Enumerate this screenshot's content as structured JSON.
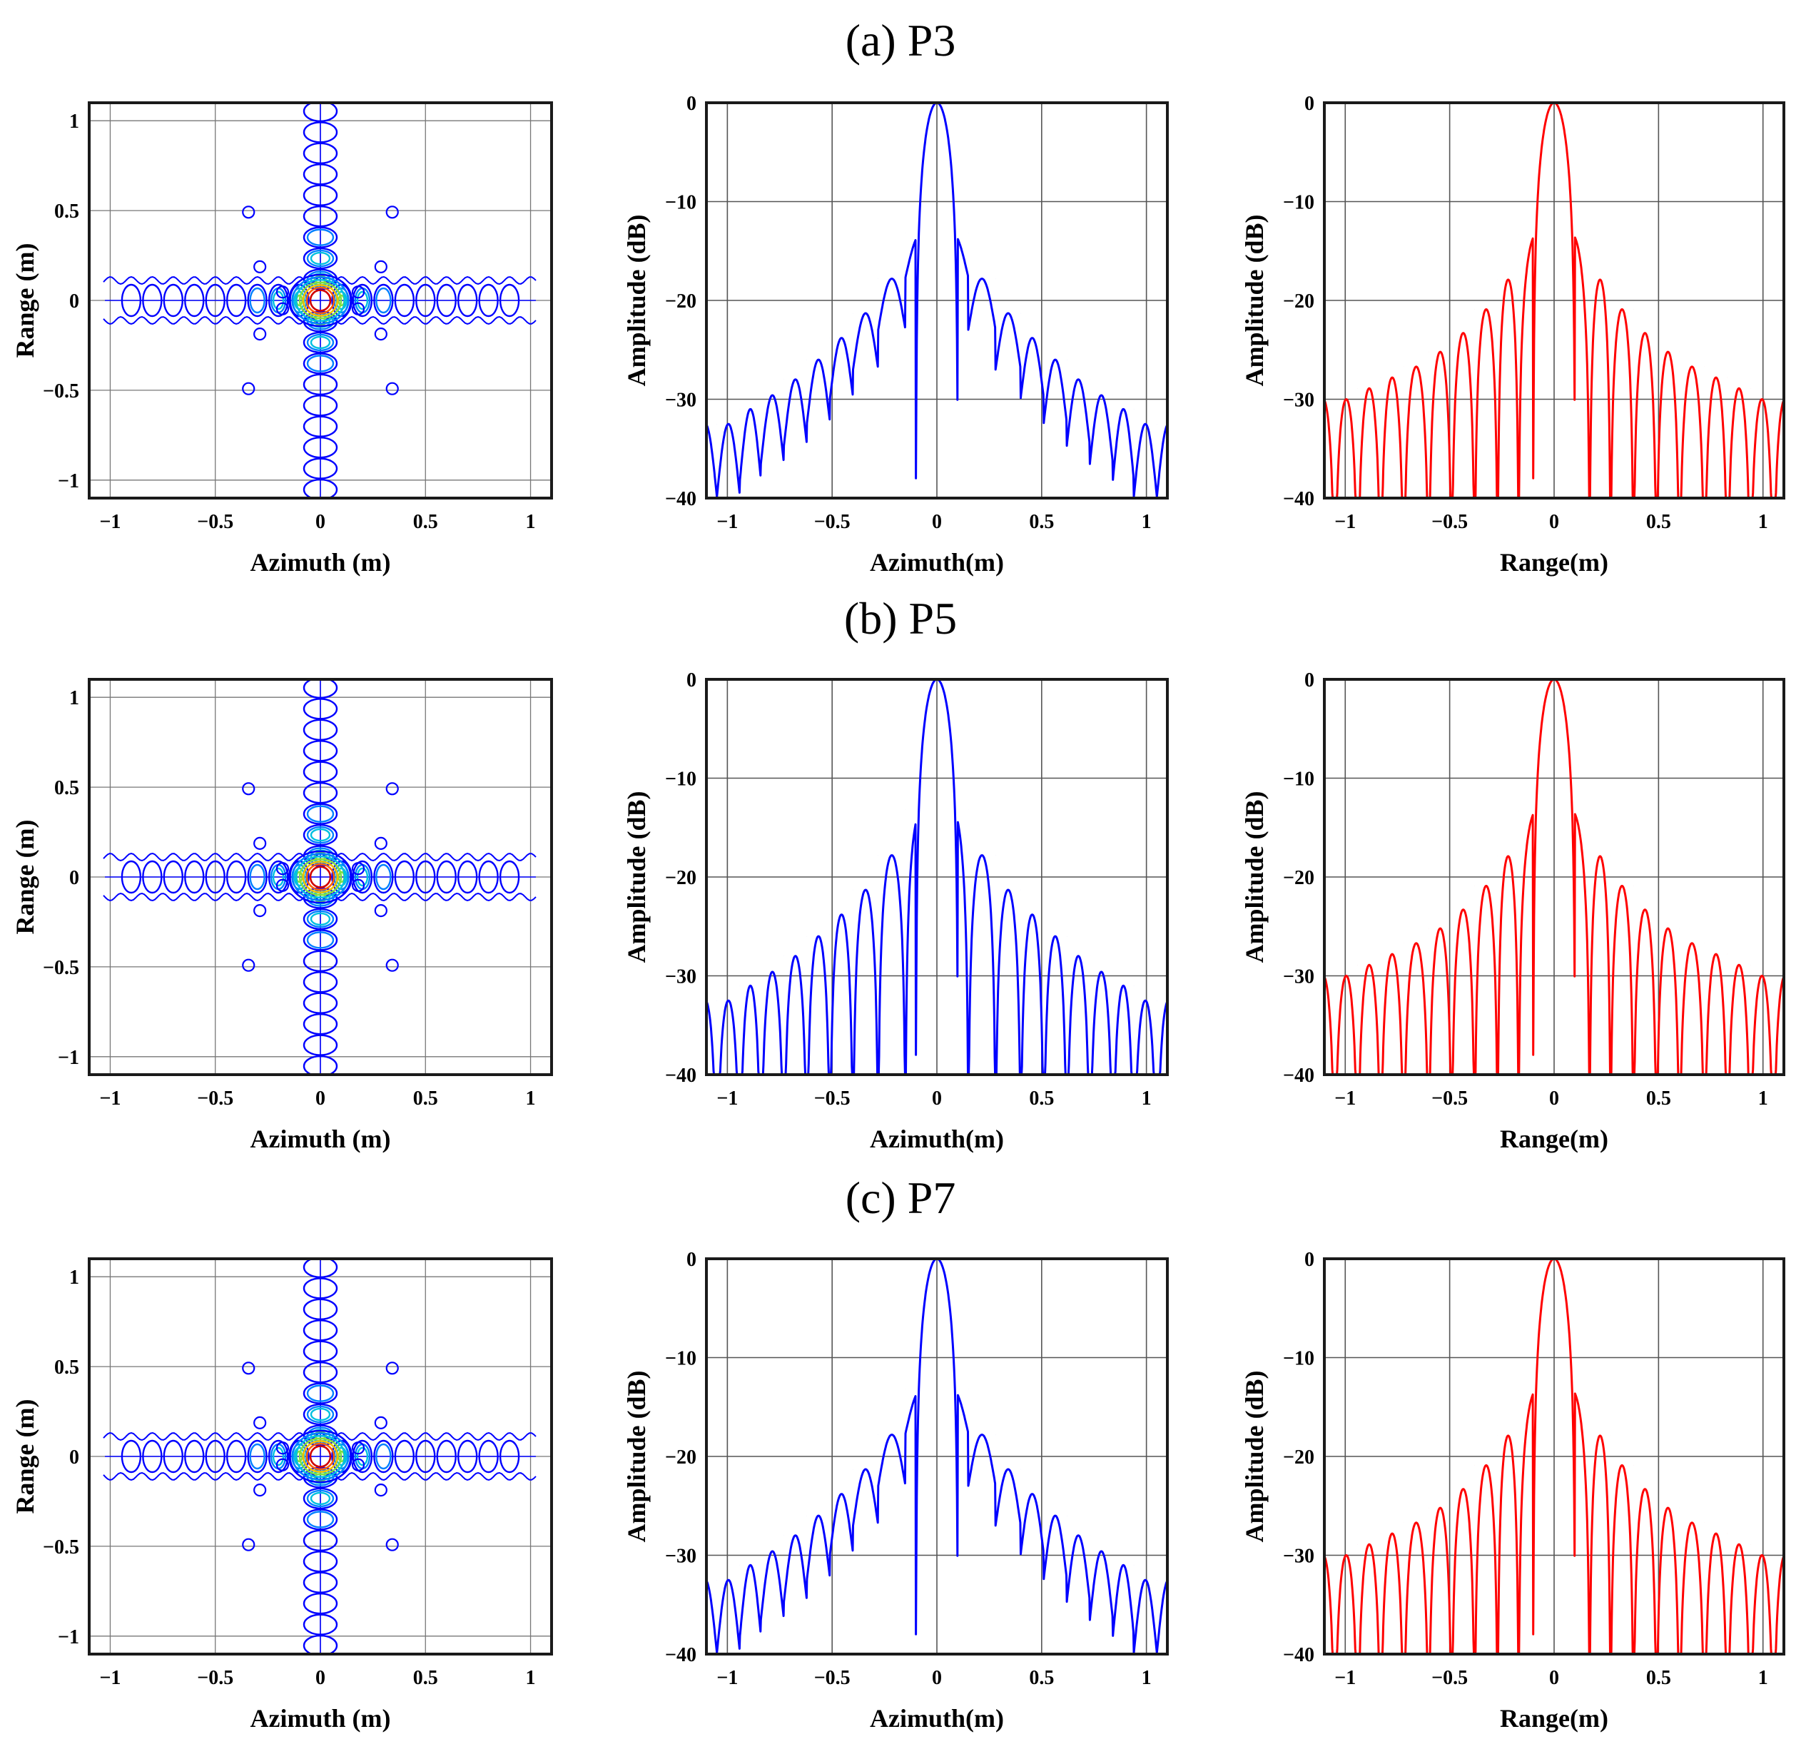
{
  "figure": {
    "rows": [
      {
        "title": "(a) P3",
        "azimuth_style": "smooth"
      },
      {
        "title": "(b) P5",
        "azimuth_style": "nulls"
      },
      {
        "title": "(c) P7",
        "azimuth_style": "smooth"
      }
    ]
  },
  "chart_data": [
    {
      "type": "contour",
      "panel": "2D point target response",
      "xlabel": "Azimuth (m)",
      "ylabel": "Range (m)",
      "xlim": [
        -1.1,
        1.1
      ],
      "ylim": [
        -1.1,
        1.1
      ],
      "xticks": [
        -1,
        -0.5,
        0,
        0.5,
        1
      ],
      "xtick_labels": [
        "−1",
        "−0.5",
        "0",
        "0.5",
        "1"
      ],
      "yticks": [
        -1,
        -0.5,
        0,
        0.5,
        1
      ],
      "ytick_labels": [
        "−1",
        "−0.5",
        "0",
        "0.5",
        "1"
      ],
      "grid": true,
      "levels": [
        "#0000ff",
        "#0080ff",
        "#00c0e0",
        "#80e040",
        "#f0c000",
        "#ff6000",
        "#d00000"
      ],
      "sidelobe_spacing_m": 0.1
    },
    {
      "type": "line",
      "panel": "azimuth profile",
      "xlabel": "Azimuth(m)",
      "ylabel": "Amplitude (dB)",
      "xlim": [
        -1.1,
        1.1
      ],
      "ylim": [
        -40,
        0
      ],
      "xticks": [
        -1,
        -0.5,
        0,
        0.5,
        1
      ],
      "xtick_labels": [
        "−1",
        "−0.5",
        "0",
        "0.5",
        "1"
      ],
      "yticks": [
        0,
        -10,
        -20,
        -30,
        -40
      ],
      "ytick_labels": [
        "0",
        "−10",
        "−20",
        "−30",
        "−40"
      ],
      "grid": true,
      "color": "#0000ff",
      "peaks": [
        {
          "x": 0.0,
          "y": 0
        },
        {
          "x": 0.15,
          "y": -13.2
        },
        {
          "x": 0.28,
          "y": -17.8
        },
        {
          "x": 0.4,
          "y": -21.3
        },
        {
          "x": 0.51,
          "y": -23.8
        },
        {
          "x": 0.62,
          "y": -26.0
        },
        {
          "x": 0.73,
          "y": -28.0
        },
        {
          "x": 0.84,
          "y": -29.6
        },
        {
          "x": 0.94,
          "y": -31.0
        },
        {
          "x": 1.05,
          "y": -32.5
        }
      ]
    },
    {
      "type": "line",
      "panel": "range profile",
      "xlabel": "Range(m)",
      "ylabel": "Amplitude (dB)",
      "xlim": [
        -1.1,
        1.1
      ],
      "ylim": [
        -40,
        0
      ],
      "xticks": [
        -1,
        -0.5,
        0,
        0.5,
        1
      ],
      "xtick_labels": [
        "−1",
        "−0.5",
        "0",
        "0.5",
        "1"
      ],
      "yticks": [
        0,
        -10,
        -20,
        -30,
        -40
      ],
      "ytick_labels": [
        "0",
        "−10",
        "−20",
        "−30",
        "−40"
      ],
      "grid": true,
      "color": "#ff0000",
      "peaks": [
        {
          "x": 0.0,
          "y": 0
        },
        {
          "x": 0.17,
          "y": -13.3
        },
        {
          "x": 0.27,
          "y": -17.9
        },
        {
          "x": 0.38,
          "y": -20.9
        },
        {
          "x": 0.49,
          "y": -23.3
        },
        {
          "x": 0.6,
          "y": -25.2
        },
        {
          "x": 0.72,
          "y": -26.7
        },
        {
          "x": 0.83,
          "y": -27.8
        },
        {
          "x": 0.94,
          "y": -28.9
        },
        {
          "x": 1.05,
          "y": -30.0
        }
      ]
    }
  ]
}
